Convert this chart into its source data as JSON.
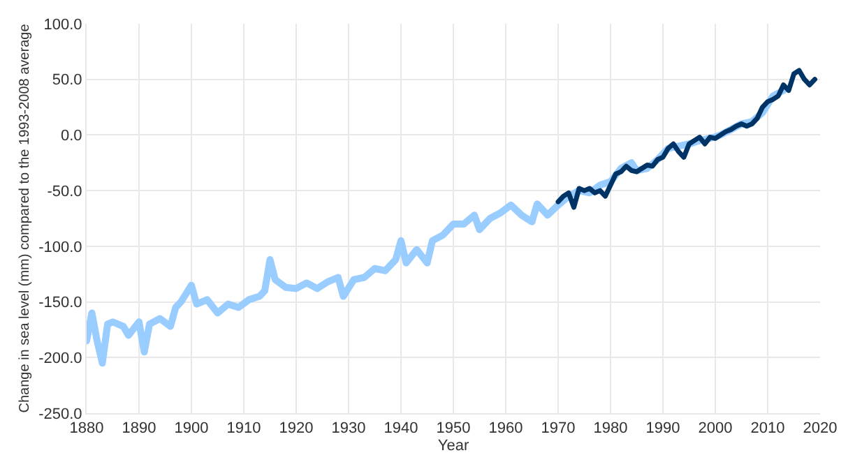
{
  "chart_data": {
    "type": "line",
    "xlabel": "Year",
    "ylabel": "Change in sea level (mm) compared to the 1993-2008 average",
    "series": [
      {
        "color": "#99ccff",
        "x": [
          1880,
          1881,
          1882,
          1883,
          1884,
          1885,
          1887,
          1888,
          1890,
          1891,
          1892,
          1894,
          1896,
          1897,
          1898,
          1900,
          1901,
          1903,
          1905,
          1907,
          1909,
          1911,
          1913,
          1914,
          1915,
          1916,
          1918,
          1920,
          1922,
          1924,
          1926,
          1928,
          1929,
          1931,
          1933,
          1935,
          1937,
          1939,
          1940,
          1941,
          1943,
          1945,
          1946,
          1948,
          1950,
          1952,
          1954,
          1955,
          1957,
          1959,
          1961,
          1963,
          1965,
          1966,
          1968,
          1970,
          1972,
          1974,
          1976,
          1978,
          1980,
          1982,
          1984,
          1985,
          1987,
          1989,
          1991,
          1993,
          1995,
          1997,
          1999,
          2001,
          2003,
          2005,
          2007,
          2009,
          2011,
          2013
        ],
        "values": [
          -185,
          -160,
          -185,
          -205,
          -170,
          -168,
          -172,
          -180,
          -168,
          -195,
          -170,
          -165,
          -172,
          -155,
          -150,
          -135,
          -152,
          -148,
          -160,
          -152,
          -155,
          -148,
          -145,
          -140,
          -112,
          -130,
          -137,
          -138,
          -133,
          -138,
          -132,
          -128,
          -145,
          -130,
          -128,
          -120,
          -122,
          -112,
          -95,
          -115,
          -103,
          -115,
          -95,
          -90,
          -80,
          -80,
          -72,
          -85,
          -75,
          -70,
          -63,
          -72,
          -78,
          -62,
          -72,
          -63,
          -55,
          -50,
          -52,
          -45,
          -42,
          -30,
          -25,
          -32,
          -30,
          -22,
          -12,
          -10,
          -8,
          -5,
          -3,
          0,
          5,
          10,
          12,
          20,
          35,
          40
        ]
      },
      {
        "color": "#003366",
        "x": [
          1970,
          1971,
          1972,
          1973,
          1974,
          1975,
          1976,
          1977,
          1978,
          1979,
          1980,
          1981,
          1982,
          1983,
          1984,
          1985,
          1986,
          1987,
          1988,
          1989,
          1990,
          1991,
          1992,
          1993,
          1994,
          1995,
          1996,
          1997,
          1998,
          1999,
          2000,
          2001,
          2002,
          2003,
          2004,
          2005,
          2006,
          2007,
          2008,
          2009,
          2010,
          2011,
          2012,
          2013,
          2014,
          2015,
          2016,
          2017,
          2018,
          2019
        ],
        "values": [
          -60,
          -55,
          -52,
          -65,
          -48,
          -50,
          -48,
          -52,
          -50,
          -55,
          -45,
          -35,
          -33,
          -28,
          -32,
          -33,
          -30,
          -27,
          -28,
          -22,
          -20,
          -12,
          -8,
          -15,
          -20,
          -8,
          -5,
          -2,
          -8,
          -2,
          -3,
          0,
          3,
          5,
          8,
          10,
          8,
          10,
          15,
          25,
          30,
          32,
          35,
          45,
          40,
          55,
          58,
          50,
          45,
          50
        ]
      }
    ],
    "xlim": [
      1880,
      2020
    ],
    "xticks": [
      1880,
      1890,
      1900,
      1910,
      1920,
      1930,
      1940,
      1950,
      1960,
      1970,
      1980,
      1990,
      2000,
      2010,
      2020
    ],
    "ylim": [
      -250,
      100
    ],
    "yticks": [
      {
        "value": -250,
        "label": "-250.0"
      },
      {
        "value": -200,
        "label": "-200.0"
      },
      {
        "value": -150,
        "label": "-150.0"
      },
      {
        "value": -100,
        "label": "-100.0"
      },
      {
        "value": -50,
        "label": "-50.0"
      },
      {
        "value": 0,
        "label": "0.0"
      },
      {
        "value": 50,
        "label": "50.0"
      },
      {
        "value": 100,
        "label": "100.0"
      }
    ],
    "grid": true
  }
}
